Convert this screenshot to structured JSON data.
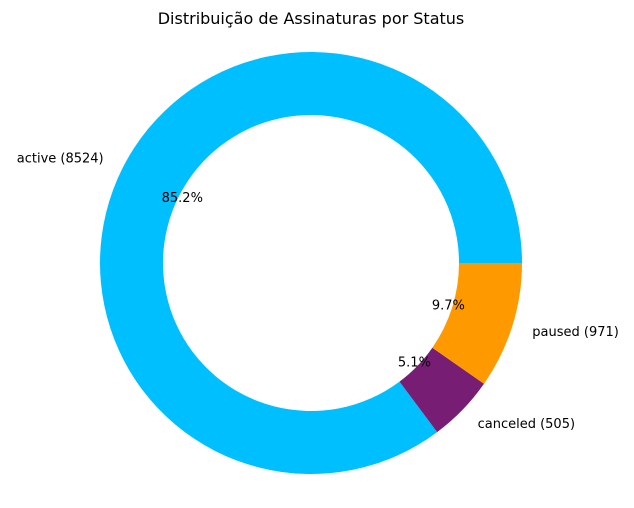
{
  "chart_data": {
    "type": "pie",
    "variant": "donut",
    "title": "Distribuição de Assinaturas por Status",
    "slices": [
      {
        "label": "active (8524)",
        "category": "active",
        "count": 8524,
        "value": 85.2,
        "pct_label": "85.2%",
        "color": "#00BFFF"
      },
      {
        "label": "canceled (505)",
        "category": "canceled",
        "count": 505,
        "value": 5.1,
        "pct_label": "5.1%",
        "color": "#771D74"
      },
      {
        "label": "paused (971)",
        "category": "paused",
        "count": 971,
        "value": 9.7,
        "pct_label": "9.7%",
        "color": "#FF9900"
      }
    ],
    "start_angle_deg": 0,
    "direction": "counterclockwise",
    "legend": false
  }
}
